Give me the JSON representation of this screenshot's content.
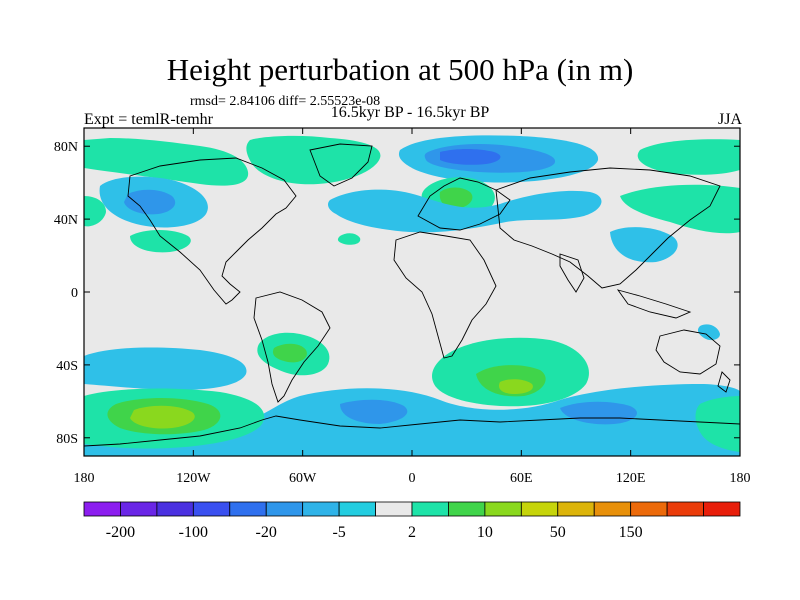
{
  "title": "Height perturbation at 500 hPa (in m)",
  "stats": "rmsd= 2.84106 diff= 2.55523e-08",
  "experiment": "Expt = temlR-temhr",
  "period": "16.5kyr BP - 16.5kyr BP",
  "season": "JJA",
  "lat_ticks": [
    {
      "label": "80N",
      "lat": 80
    },
    {
      "label": "40N",
      "lat": 40
    },
    {
      "label": "0",
      "lat": 0
    },
    {
      "label": "40S",
      "lat": -40
    },
    {
      "label": "80S",
      "lat": -80
    }
  ],
  "lon_ticks": [
    {
      "label": "180",
      "lon": -180
    },
    {
      "label": "120W",
      "lon": -120
    },
    {
      "label": "60W",
      "lon": -60
    },
    {
      "label": "0",
      "lon": 0
    },
    {
      "label": "60E",
      "lon": 60
    },
    {
      "label": "120E",
      "lon": 120
    },
    {
      "label": "180",
      "lon": 180
    }
  ],
  "colorbar": {
    "colors": [
      "#8c1eef",
      "#6a26e6",
      "#4a30e0",
      "#3a50f0",
      "#2f70ee",
      "#2f96ea",
      "#2fb3e8",
      "#23cde0",
      "#e9e9e9",
      "#1ee3a8",
      "#40d44a",
      "#8ad81e",
      "#c6d40a",
      "#dcb40a",
      "#e8900a",
      "#ec6a0a",
      "#ea3c0a",
      "#e81e0a"
    ],
    "labels": [
      "-200",
      "-100",
      "-20",
      "-5",
      "2",
      "10",
      "50",
      "150"
    ]
  },
  "fields": {
    "cyan": "#2fc0e8",
    "light_blue": "#2f96ea",
    "blue": "#2f70ee",
    "green": "#1ee3a8",
    "lime": "#40d44a",
    "yellow_green": "#8ad81e"
  },
  "ocean_background": "#e9e9e9"
}
